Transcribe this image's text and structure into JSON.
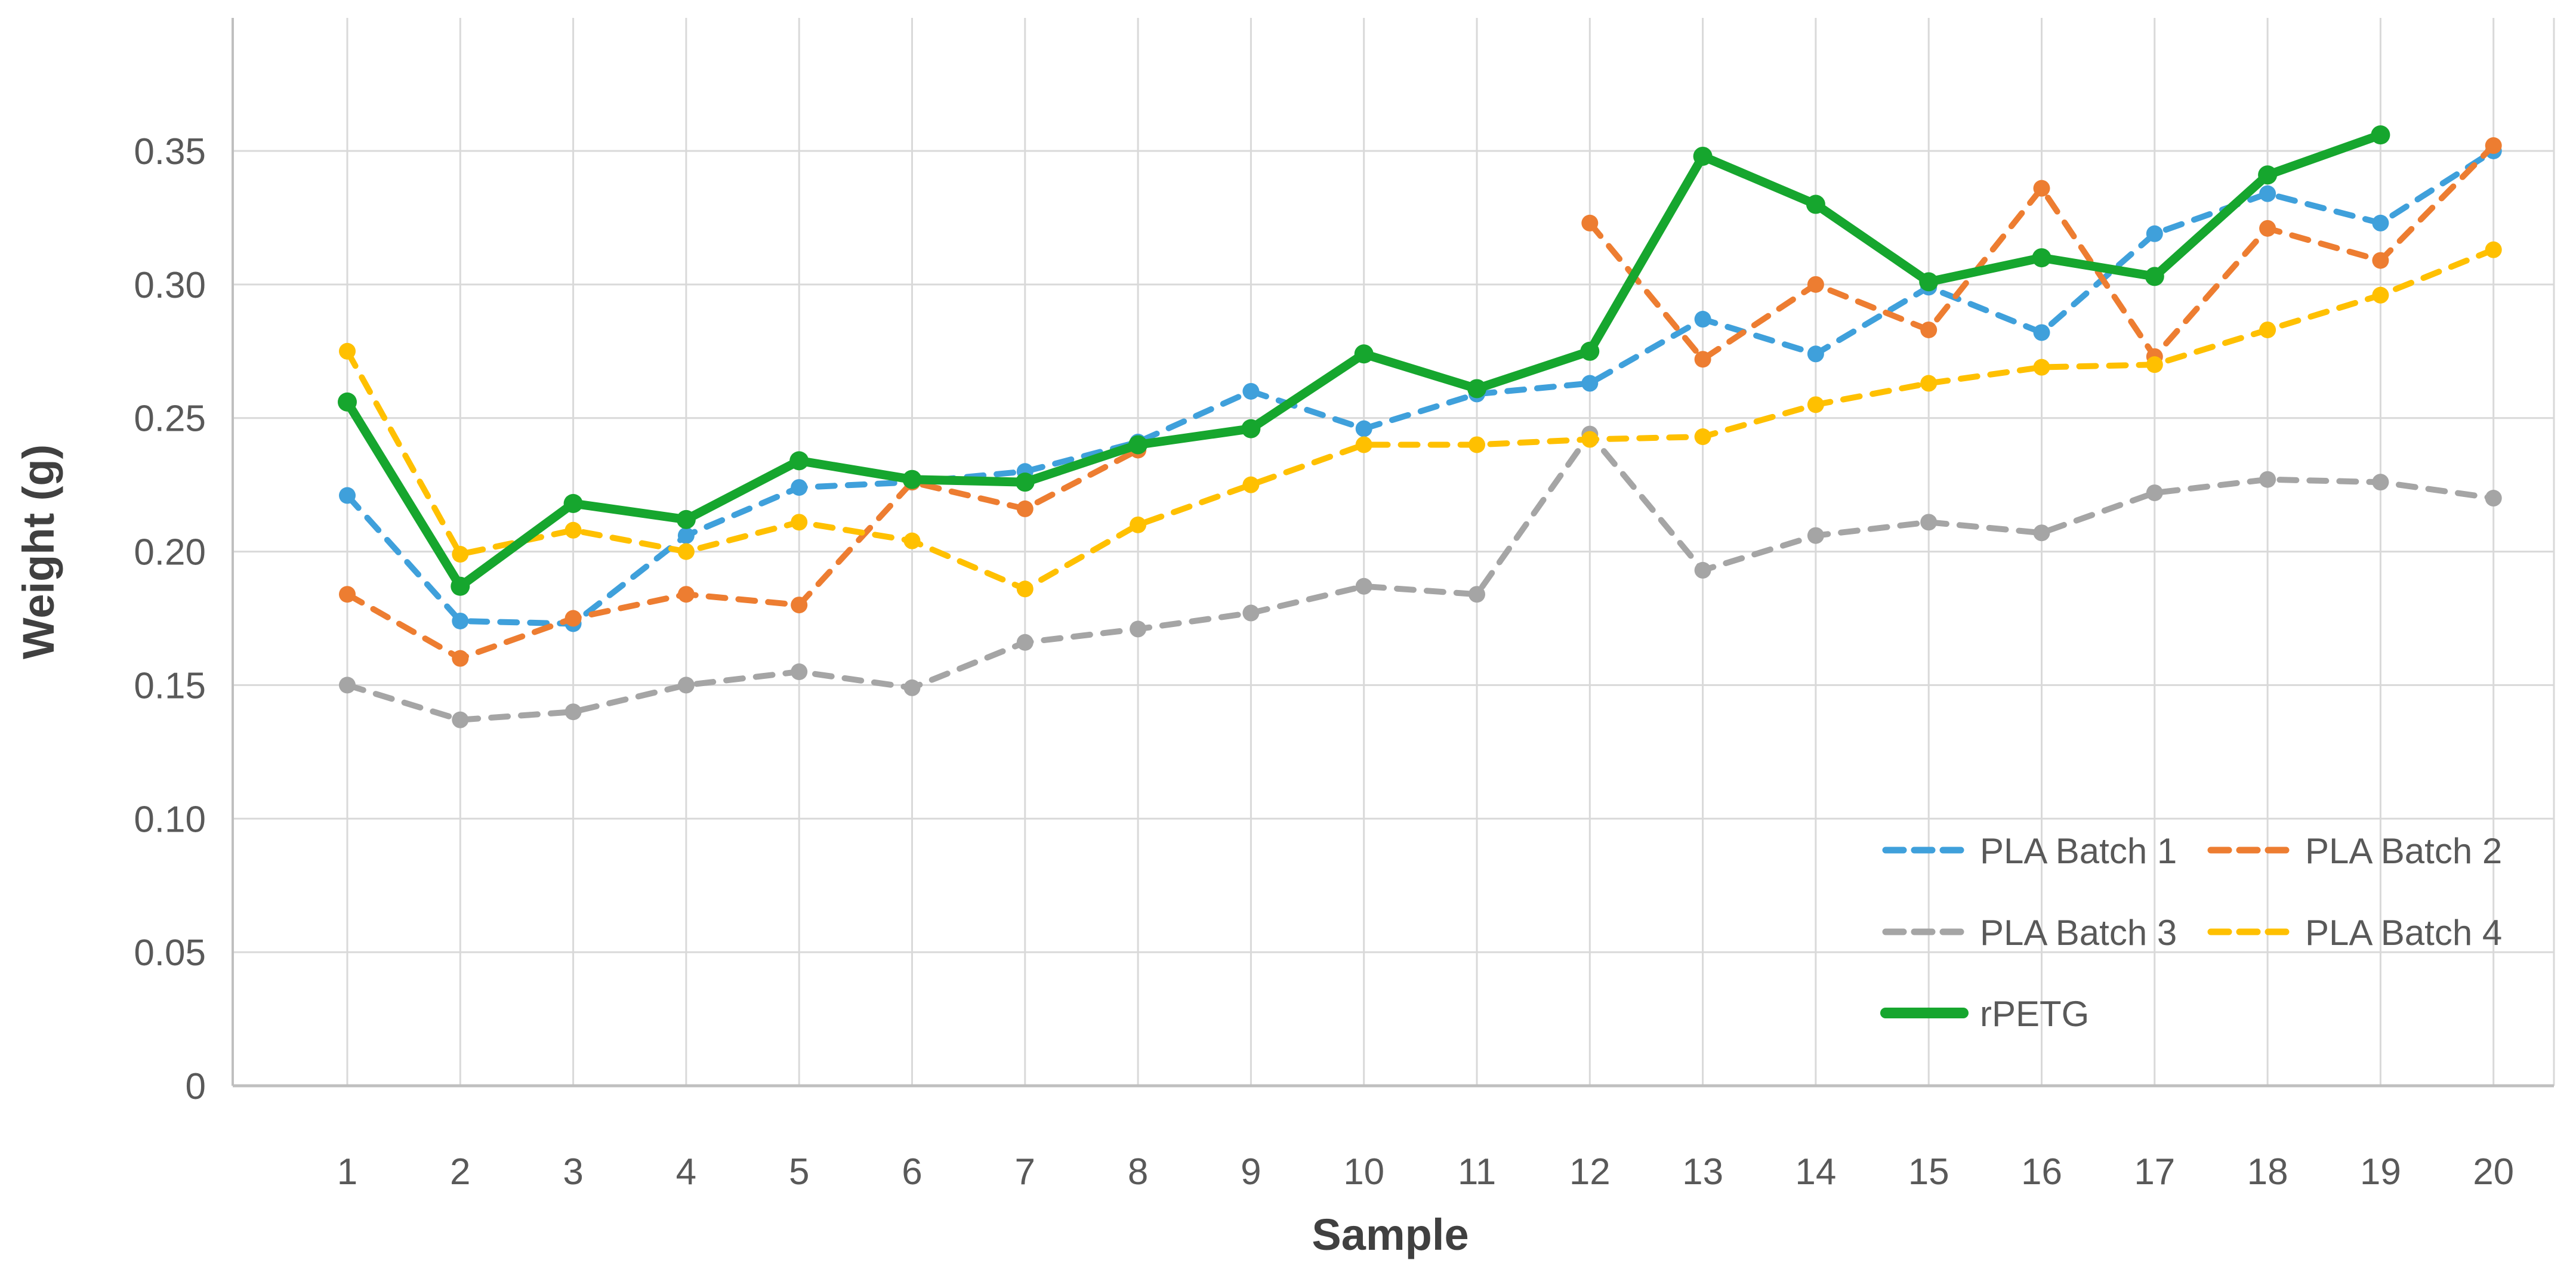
{
  "chart_data": {
    "type": "line",
    "title": "",
    "xlabel": "Sample",
    "ylabel": "Weight (g)",
    "x": [
      1,
      2,
      3,
      4,
      5,
      6,
      7,
      8,
      9,
      10,
      11,
      12,
      13,
      14,
      15,
      16,
      17,
      18,
      19,
      20
    ],
    "x_tick_labels": [
      "1",
      "2",
      "3",
      "4",
      "5",
      "6",
      "7",
      "8",
      "9",
      "10",
      "11",
      "12",
      "13",
      "14",
      "15",
      "16",
      "17",
      "18",
      "19",
      "20"
    ],
    "y_tick_labels": [
      "0",
      "0.05",
      "0.10",
      "0.15",
      "0.20",
      "0.25",
      "0.30",
      "0.35"
    ],
    "ylim": [
      0,
      0.4
    ],
    "ytick_step": 0.05,
    "grid": true,
    "legend_position": "inside-lower-right",
    "axis_text_color": "#595959",
    "axis_title_color": "#404040",
    "gridline_color": "#D9D9D9",
    "axis_line_color": "#BFBFBF",
    "series": [
      {
        "name": "PLA Batch 1",
        "color": "#3FA0DB",
        "line_style": "dashed",
        "marker": "circle",
        "values": [
          0.221,
          0.174,
          0.173,
          0.206,
          0.224,
          0.226,
          0.23,
          0.241,
          0.26,
          0.246,
          0.259,
          0.263,
          0.287,
          0.274,
          0.299,
          0.282,
          0.319,
          0.334,
          0.323,
          0.35
        ]
      },
      {
        "name": "PLA Batch 2",
        "color": "#ED7D31",
        "line_style": "dashed",
        "marker": "circle",
        "values": [
          0.184,
          0.16,
          0.175,
          0.184,
          0.18,
          0.226,
          0.216,
          0.238,
          null,
          null,
          null,
          0.323,
          0.272,
          0.3,
          0.283,
          0.336,
          0.273,
          0.321,
          0.309,
          0.352
        ]
      },
      {
        "name": "PLA Batch 3",
        "color": "#A5A5A5",
        "line_style": "dashed",
        "marker": "circle",
        "values": [
          0.15,
          0.137,
          0.14,
          0.15,
          0.155,
          0.149,
          0.166,
          0.171,
          0.177,
          0.187,
          0.184,
          0.244,
          0.193,
          0.206,
          0.211,
          0.207,
          0.222,
          0.227,
          0.226,
          0.22
        ]
      },
      {
        "name": "PLA Batch 4",
        "color": "#FFC000",
        "line_style": "dashed",
        "marker": "circle",
        "values": [
          0.275,
          0.199,
          0.208,
          0.2,
          0.211,
          0.204,
          0.186,
          0.21,
          0.225,
          0.24,
          0.24,
          0.242,
          0.243,
          0.255,
          0.263,
          0.269,
          0.27,
          0.283,
          0.296,
          0.313
        ]
      },
      {
        "name": "rPETG",
        "color": "#16A62E",
        "line_style": "solid",
        "marker": "circle",
        "values": [
          0.256,
          0.187,
          0.218,
          0.212,
          0.234,
          0.227,
          0.226,
          0.24,
          0.246,
          0.274,
          0.261,
          0.275,
          0.348,
          0.33,
          0.301,
          0.31,
          0.303,
          0.341,
          0.356,
          null
        ]
      }
    ]
  }
}
